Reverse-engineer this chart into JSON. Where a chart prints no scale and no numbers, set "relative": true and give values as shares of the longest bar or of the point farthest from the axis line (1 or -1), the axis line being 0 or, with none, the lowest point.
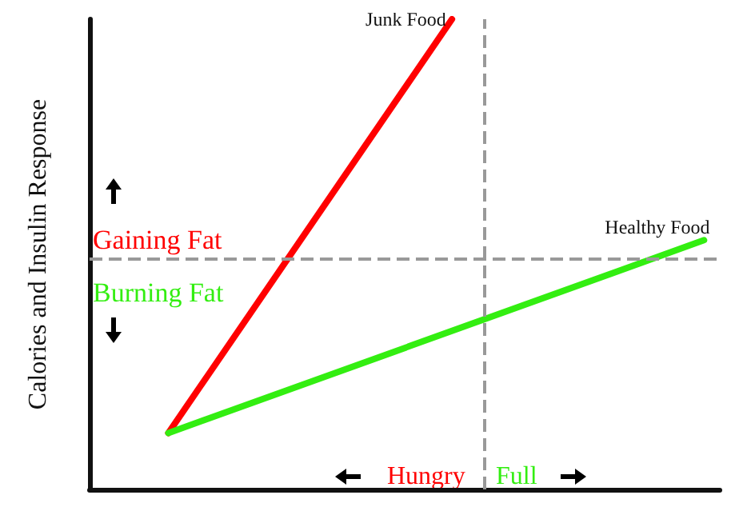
{
  "chart_data": {
    "type": "line",
    "relative": true,
    "ylabel": "Calories and Insulin Response",
    "grid": false,
    "legend": false,
    "marker": "none",
    "line_style": "solid",
    "categories": [
      null,
      null,
      null,
      null,
      null,
      null,
      null,
      null,
      null,
      null,
      null,
      null,
      null,
      null,
      null,
      null,
      null,
      null,
      null,
      null,
      null,
      null,
      null,
      null,
      null,
      null,
      null,
      null,
      null,
      null,
      null,
      null,
      null,
      null,
      null,
      null,
      null,
      null,
      null,
      null,
      null
    ],
    "series": [
      {
        "name": "Junk Food",
        "color": "#ff0000",
        "values": [
          null,
          null,
          null,
          null,
          null,
          0.12,
          null,
          null,
          null,
          null,
          null,
          null,
          null,
          null,
          null,
          null,
          null,
          null,
          null,
          null,
          null,
          null,
          null,
          1,
          null,
          null,
          null,
          null,
          null,
          null,
          null,
          null,
          null,
          null,
          null,
          null,
          null,
          null,
          null,
          null,
          null
        ]
      },
      {
        "name": "Healthy Food",
        "color": "#33ee11",
        "values": [
          null,
          null,
          null,
          null,
          null,
          0.12,
          null,
          null,
          null,
          null,
          null,
          null,
          null,
          null,
          null,
          null,
          null,
          null,
          null,
          null,
          null,
          null,
          null,
          null,
          null,
          null,
          null,
          null,
          null,
          null,
          null,
          null,
          null,
          null,
          null,
          null,
          null,
          null,
          null,
          0.53,
          null
        ]
      }
    ],
    "ref_lines": [
      {
        "axis": "y",
        "value": 0.49,
        "line_style": "dashed",
        "color": "#999999"
      }
    ],
    "annotations": [
      "Gaining Fat",
      "Burning Fat",
      "Hungry",
      "Full"
    ]
  }
}
